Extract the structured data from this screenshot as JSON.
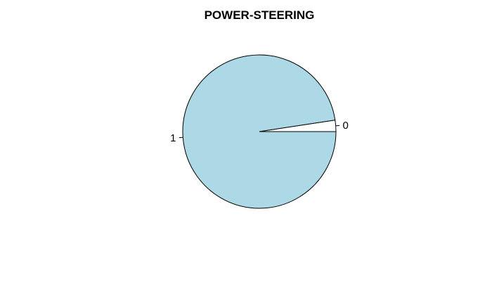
{
  "chart_data": {
    "type": "pie",
    "title": "POWER-STEERING",
    "slices": [
      {
        "label": "0",
        "value": 0.024,
        "color": "#ffffff"
      },
      {
        "label": "1",
        "value": 0.976,
        "color": "#add8e6"
      }
    ],
    "start_angle_deg": 0,
    "direction": "counterclockwise",
    "border_color": "#000000"
  }
}
